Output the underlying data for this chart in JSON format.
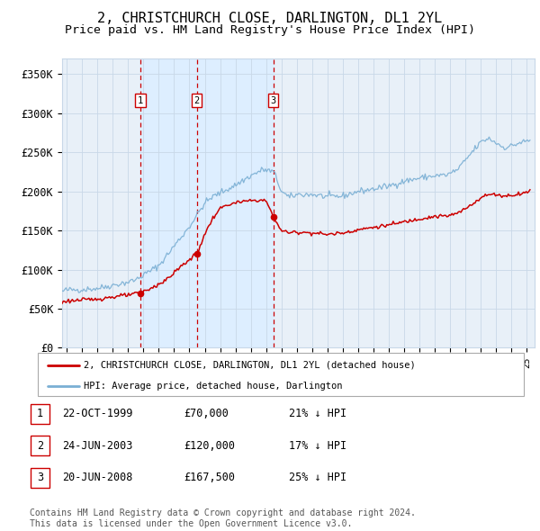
{
  "title": "2, CHRISTCHURCH CLOSE, DARLINGTON, DL1 2YL",
  "subtitle": "Price paid vs. HM Land Registry's House Price Index (HPI)",
  "title_fontsize": 11,
  "subtitle_fontsize": 9.5,
  "xlim": [
    1994.7,
    2025.5
  ],
  "ylim": [
    0,
    370000
  ],
  "yticks": [
    0,
    50000,
    100000,
    150000,
    200000,
    250000,
    300000,
    350000
  ],
  "ytick_labels": [
    "£0",
    "£50K",
    "£100K",
    "£150K",
    "£200K",
    "£250K",
    "£300K",
    "£350K"
  ],
  "xtick_years": [
    1995,
    1996,
    1997,
    1998,
    1999,
    2000,
    2001,
    2002,
    2003,
    2004,
    2005,
    2006,
    2007,
    2008,
    2009,
    2010,
    2011,
    2012,
    2013,
    2014,
    2015,
    2016,
    2017,
    2018,
    2019,
    2020,
    2021,
    2022,
    2023,
    2024,
    2025
  ],
  "sale_date_nums": [
    1999.806,
    2003.478,
    2008.47
  ],
  "sale_prices": [
    70000,
    120000,
    167500
  ],
  "vline_color": "#cc0000",
  "sale_line_color": "#cc0000",
  "hpi_line_color": "#7aafd4",
  "bg_shade_color": "#ddeeff",
  "plot_bg_color": "#e8f0f8",
  "grid_color": "#c8d8e8",
  "legend_sale_label": "2, CHRISTCHURCH CLOSE, DARLINGTON, DL1 2YL (detached house)",
  "legend_hpi_label": "HPI: Average price, detached house, Darlington",
  "table_rows": [
    {
      "num": "1",
      "date": "22-OCT-1999",
      "price": "£70,000",
      "hpi": "21% ↓ HPI"
    },
    {
      "num": "2",
      "date": "24-JUN-2003",
      "price": "£120,000",
      "hpi": "17% ↓ HPI"
    },
    {
      "num": "3",
      "date": "20-JUN-2008",
      "price": "£167,500",
      "hpi": "25% ↓ HPI"
    }
  ],
  "footnote": "Contains HM Land Registry data © Crown copyright and database right 2024.\nThis data is licensed under the Open Government Licence v3.0."
}
